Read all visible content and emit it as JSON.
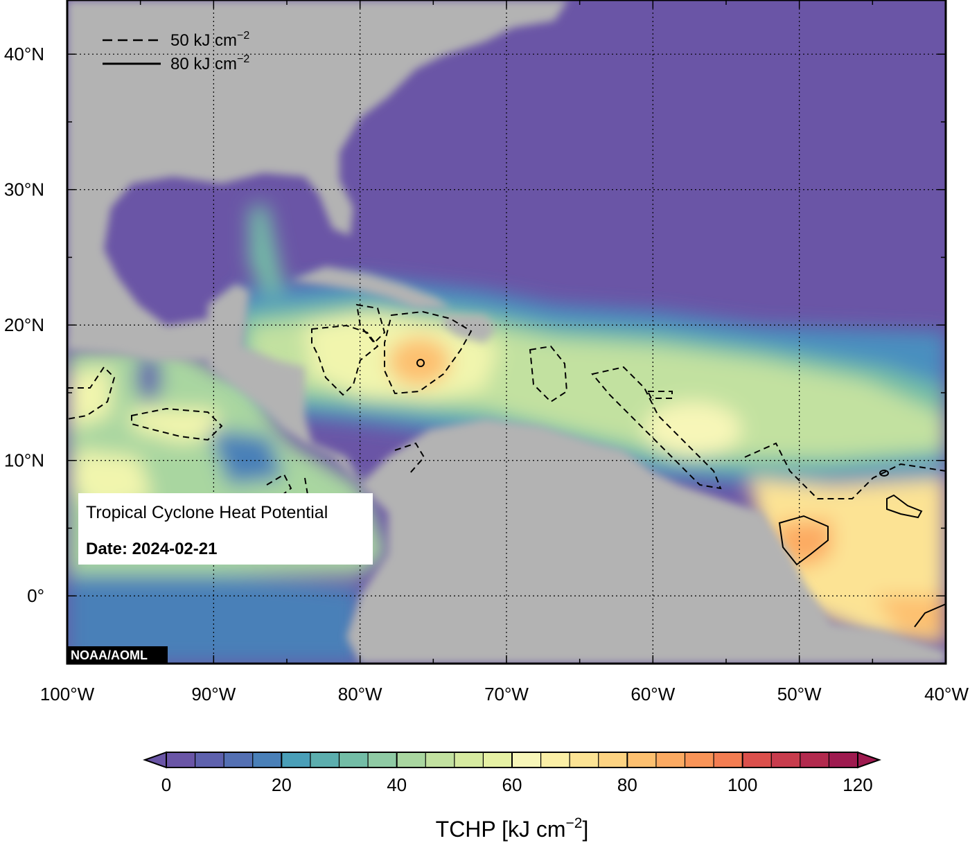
{
  "map": {
    "title": "Tropical Cyclone Heat Potential",
    "date_label": "Date: 2024-02-21",
    "credit": "NOAA/AOML",
    "lon_range": [
      -100,
      -40
    ],
    "lat_range": [
      -5,
      44
    ],
    "lat_ticks": [
      {
        "value": 40,
        "label": "40°N"
      },
      {
        "value": 30,
        "label": "30°N"
      },
      {
        "value": 20,
        "label": "20°N"
      },
      {
        "value": 10,
        "label": "10°N"
      },
      {
        "value": 0,
        "label": "0°"
      }
    ],
    "lon_ticks": [
      {
        "value": -100,
        "label": "100°W"
      },
      {
        "value": -90,
        "label": "90°W"
      },
      {
        "value": -80,
        "label": "80°W"
      },
      {
        "value": -70,
        "label": "70°W"
      },
      {
        "value": -60,
        "label": "60°W"
      },
      {
        "value": -50,
        "label": "50°W"
      },
      {
        "value": -40,
        "label": "40°W"
      }
    ],
    "grid": "dotted",
    "land_color": "#b3b3b3",
    "legend": {
      "position": "top-left",
      "items": [
        {
          "style": "dashed",
          "text": "50 kJ cm",
          "sup": "−2"
        },
        {
          "style": "solid",
          "text": "80 kJ cm",
          "sup": "−2"
        }
      ]
    },
    "colorbar": {
      "label": "TCHP [kJ cm",
      "label_sup": "−2",
      "label_end": "]",
      "min": 0,
      "max": 120,
      "step": 5,
      "tick_values": [
        "0",
        "20",
        "40",
        "60",
        "80",
        "100",
        "120"
      ],
      "colors": [
        "#6a55a6",
        "#5e61ad",
        "#5470b3",
        "#4a80b8",
        "#3f90be",
        "#4a9fb8",
        "#5caeae",
        "#73bda6",
        "#8fcaa4",
        "#a9d6a0",
        "#c2e1a0",
        "#d6eaa0",
        "#e6f1a4",
        "#f1f5ad",
        "#f7f6b8",
        "#fbefa6",
        "#fce394",
        "#fdd382",
        "#fdc070",
        "#fcaa62",
        "#f99458",
        "#f37d52",
        "#ea664e",
        "#db504c",
        "#c83c4d",
        "#b22a4e",
        "#9e1a4f"
      ],
      "arrow_low": "#6a55a6",
      "arrow_high": "#9e1a4f"
    }
  }
}
